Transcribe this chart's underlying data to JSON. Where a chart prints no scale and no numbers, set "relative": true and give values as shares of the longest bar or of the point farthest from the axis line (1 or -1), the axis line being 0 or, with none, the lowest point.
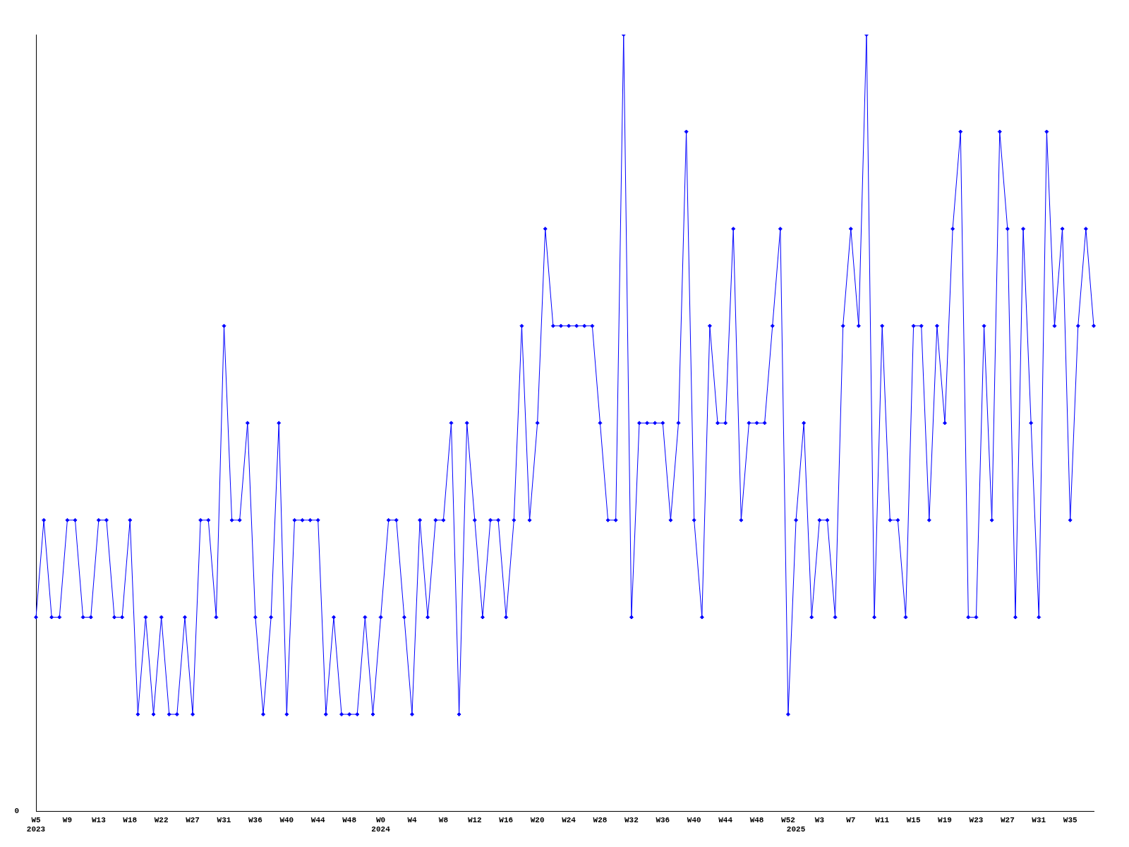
{
  "chart_data": {
    "type": "line",
    "relative": true,
    "marker": "diamond",
    "line_style": "solid",
    "grid": false,
    "legend": false,
    "annotations": [
      "0"
    ],
    "categories": [
      "W5\n2023",
      null,
      null,
      null,
      "W9",
      null,
      null,
      null,
      "W13",
      null,
      null,
      null,
      "W18",
      null,
      null,
      null,
      "W22",
      null,
      null,
      null,
      "W27",
      null,
      null,
      null,
      "W31",
      null,
      null,
      null,
      "W36",
      null,
      null,
      null,
      "W40",
      null,
      null,
      null,
      "W44",
      null,
      null,
      null,
      "W48",
      null,
      null,
      null,
      "W0\n2024",
      null,
      null,
      null,
      "W4",
      null,
      null,
      null,
      "W8",
      null,
      null,
      null,
      "W12",
      null,
      null,
      null,
      "W16",
      null,
      null,
      null,
      "W20",
      null,
      null,
      null,
      "W24",
      null,
      null,
      null,
      "W28",
      null,
      null,
      null,
      "W32",
      null,
      null,
      null,
      "W36",
      null,
      null,
      null,
      "W40",
      null,
      null,
      null,
      "W44",
      null,
      null,
      null,
      "W48",
      null,
      null,
      null,
      "W52",
      "\n2025",
      null,
      null,
      "W3",
      null,
      null,
      null,
      "W7",
      null,
      null,
      null,
      "W11",
      null,
      null,
      null,
      "W15",
      null,
      null,
      null,
      "W19",
      null,
      null,
      null,
      "W23",
      null,
      null,
      null,
      "W27",
      null,
      null,
      null,
      "W31",
      null,
      null,
      null,
      "W35",
      null,
      null,
      null
    ],
    "series": [
      {
        "color": "#0000ff",
        "values": [
          0.25,
          0.375,
          0.25,
          0.25,
          0.375,
          0.375,
          0.25,
          0.25,
          0.375,
          0.375,
          0.25,
          0.25,
          0.375,
          0.125,
          0.25,
          0.125,
          0.25,
          0.125,
          0.125,
          0.25,
          0.125,
          0.375,
          0.375,
          0.25,
          0.625,
          0.375,
          0.375,
          0.5,
          0.25,
          0.125,
          0.25,
          0.5,
          0.125,
          0.375,
          0.375,
          0.375,
          0.375,
          0.125,
          0.25,
          0.125,
          0.125,
          0.125,
          0.25,
          0.125,
          0.25,
          0.375,
          0.375,
          0.25,
          0.125,
          0.375,
          0.25,
          0.375,
          0.375,
          0.5,
          0.125,
          0.5,
          0.375,
          0.25,
          0.375,
          0.375,
          0.25,
          0.375,
          0.625,
          0.375,
          0.5,
          0.75,
          0.625,
          0.625,
          0.625,
          0.625,
          0.625,
          0.625,
          0.5,
          0.375,
          0.375,
          1,
          0.25,
          0.5,
          0.5,
          0.5,
          0.5,
          0.375,
          0.5,
          0.875,
          0.375,
          0.25,
          0.625,
          0.5,
          0.5,
          0.75,
          0.375,
          0.5,
          0.5,
          0.5,
          0.625,
          0.75,
          0.125,
          0.375,
          0.5,
          0.25,
          0.375,
          0.375,
          0.25,
          0.625,
          0.75,
          0.625,
          1,
          0.25,
          0.625,
          0.375,
          0.375,
          0.25,
          0.625,
          0.625,
          0.375,
          0.625,
          0.5,
          0.75,
          0.875,
          0.25,
          0.25,
          0.625,
          0.375,
          0.875,
          0.75,
          0.25,
          0.75,
          0.5,
          0.25,
          0.875,
          0.625,
          0.75,
          0.375,
          0.625,
          0.75,
          0.625
        ]
      }
    ]
  }
}
